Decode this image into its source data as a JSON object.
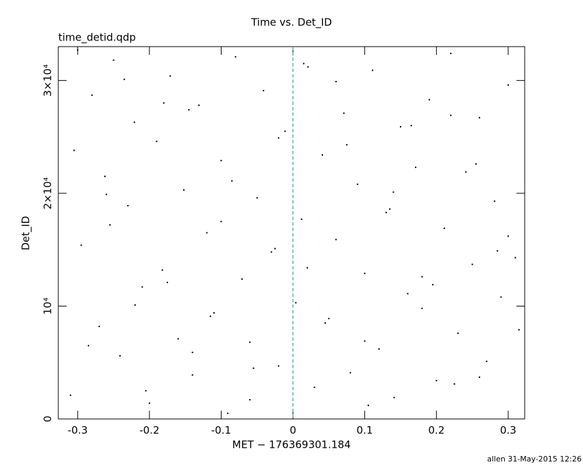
{
  "chart_data": {
    "type": "scatter",
    "title": "Time vs. Det_ID",
    "subtitle": "time_detid.qdp",
    "x_label": "MET − 176369301.184",
    "y_label": "Det_ID",
    "footer": "allen 31-May-2015 12:26",
    "color": "#000000",
    "vline": {
      "value": 0,
      "color": "#2aa8b0"
    },
    "xlim": [
      -0.327,
      0.323
    ],
    "ylim": [
      0,
      33000
    ],
    "xticks": [
      -0.3,
      -0.2,
      -0.1,
      0,
      0.1,
      0.2,
      0.3
    ],
    "yticks": [
      0,
      {
        "value": 10000,
        "label": "10⁴"
      },
      {
        "value": 20000,
        "label": "2×10⁴"
      },
      {
        "value": 30000,
        "label": "3×10⁴"
      }
    ],
    "x": [
      -0.31,
      -0.295,
      -0.28,
      -0.27,
      -0.262,
      -0.25,
      -0.241,
      -0.23,
      -0.221,
      -0.21,
      -0.2,
      -0.19,
      -0.182,
      -0.171,
      -0.16,
      -0.152,
      -0.14,
      -0.131,
      -0.12,
      -0.11,
      -0.1,
      -0.091,
      -0.08,
      -0.071,
      -0.06,
      -0.05,
      -0.041,
      -0.03,
      -0.02,
      -0.011,
      0.004,
      0.012,
      0.021,
      0.03,
      0.041,
      0.05,
      0.06,
      0.071,
      0.08,
      0.09,
      0.1,
      0.111,
      0.12,
      0.13,
      0.141,
      0.15,
      0.16,
      0.171,
      0.18,
      0.19,
      0.2,
      0.211,
      0.22,
      0.23,
      0.241,
      0.25,
      0.26,
      0.27,
      0.281,
      0.29,
      0.3,
      0.31,
      -0.305,
      -0.285,
      -0.255,
      -0.235,
      -0.205,
      -0.175,
      -0.145,
      -0.115,
      -0.085,
      -0.055,
      -0.025,
      0.015,
      0.045,
      0.075,
      0.105,
      0.135,
      0.165,
      0.195,
      0.225,
      0.255,
      0.285,
      0.315,
      -0.3,
      -0.26,
      -0.22,
      -0.18,
      -0.14,
      -0.1,
      -0.06,
      -0.02,
      0.02,
      0.06,
      0.1,
      0.14,
      0.18,
      0.22,
      0.26,
      0.3
    ],
    "y": [
      2100,
      15400,
      28700,
      8200,
      21500,
      31800,
      5600,
      18900,
      26300,
      11700,
      1400,
      24600,
      13200,
      30400,
      7100,
      20300,
      3900,
      27800,
      16500,
      9400,
      22900,
      500,
      32100,
      12400,
      6800,
      19600,
      29100,
      14800,
      4700,
      25500,
      10300,
      17700,
      31200,
      2800,
      23400,
      8900,
      15900,
      27100,
      4100,
      20800,
      12900,
      30900,
      6200,
      18300,
      1900,
      25900,
      11100,
      22300,
      9800,
      28300,
      3400,
      16900,
      32400,
      7600,
      21900,
      13700,
      26700,
      5100,
      19300,
      10800,
      29600,
      14300,
      23800,
      6500,
      17200,
      30100,
      2500,
      12100,
      27400,
      9100,
      21100,
      4500,
      15100,
      31500,
      8500,
      24300,
      1200,
      18600,
      26000,
      11900,
      3100,
      22600,
      14900,
      7900,
      32700,
      19900,
      10100,
      28000,
      5900,
      17500,
      1700,
      24900,
      13400,
      29900,
      6900,
      20100,
      12600,
      26900,
      3700,
      16200
    ],
    "grid": false
  }
}
